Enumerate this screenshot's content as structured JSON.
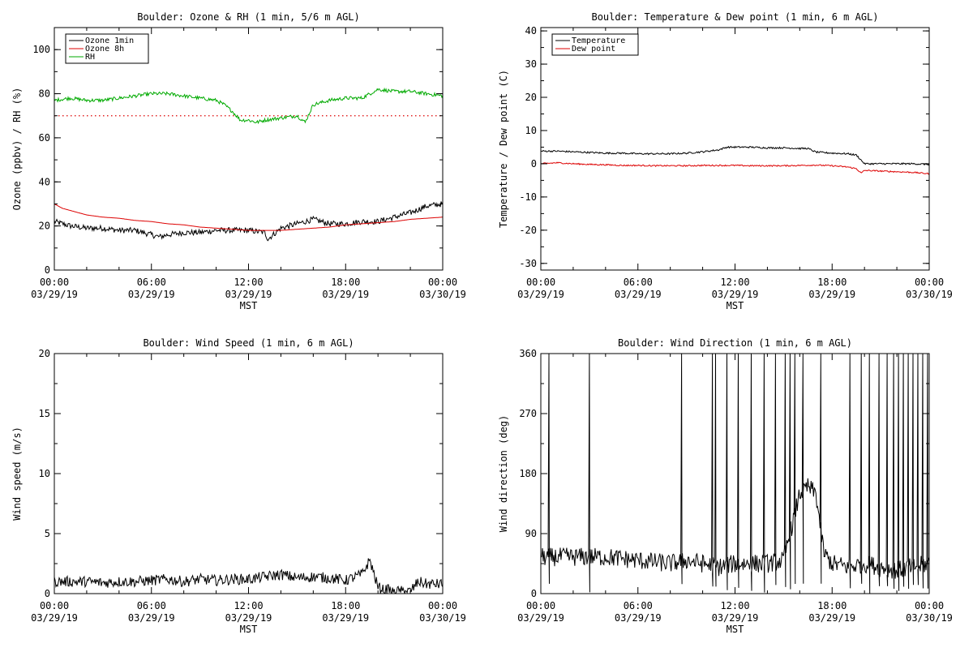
{
  "colors": {
    "black": "#000000",
    "red": "#dd0000",
    "green": "#00aa00"
  },
  "chart_data": [
    {
      "type": "line",
      "title": "Boulder: Ozone & RH (1 min, 5/6 m AGL)",
      "xlabel": "MST",
      "ylabel": "Ozone (ppbv) / RH (%)",
      "ylim": [
        0,
        110
      ],
      "yticks": [
        0,
        20,
        40,
        60,
        80,
        100
      ],
      "xlim": [
        0,
        24
      ],
      "xticks": [
        {
          "hour": 0,
          "time": "00:00",
          "date": "03/29/19"
        },
        {
          "hour": 6,
          "time": "06:00",
          "date": "03/29/19"
        },
        {
          "hour": 12,
          "time": "12:00",
          "date": "03/29/19"
        },
        {
          "hour": 18,
          "time": "18:00",
          "date": "03/29/19"
        },
        {
          "hour": 24,
          "time": "00:00",
          "date": "03/30/19"
        }
      ],
      "legend": {
        "position": "top-left"
      },
      "reference_lines": [
        {
          "y": 70,
          "color": "#dd0000",
          "style": "dotted"
        }
      ],
      "series": [
        {
          "name": "Ozone 1min",
          "color": "#000000",
          "x": [
            0,
            1,
            2,
            3,
            4,
            5,
            6,
            6.5,
            7,
            8,
            9,
            10,
            11,
            12,
            13,
            13.2,
            14,
            15,
            16,
            17,
            18,
            19,
            20,
            21,
            22,
            23,
            24
          ],
          "y": [
            22,
            20,
            19,
            19,
            18,
            18,
            16,
            15,
            16,
            17,
            17,
            18,
            18,
            18,
            17,
            14,
            19,
            21,
            23,
            21,
            21,
            22,
            22,
            24,
            26,
            29,
            30
          ],
          "noise": 1.3
        },
        {
          "name": "Ozone 8h",
          "color": "#dd0000",
          "x": [
            0,
            0.5,
            1,
            2,
            3,
            4,
            5,
            6,
            7,
            8,
            9,
            10,
            11,
            12,
            13,
            14,
            15,
            16,
            17,
            18,
            19,
            20,
            21,
            22,
            23,
            24
          ],
          "y": [
            30,
            28,
            27,
            25,
            24,
            23.5,
            22.5,
            22,
            21,
            20.5,
            19.5,
            19,
            18.5,
            18,
            18,
            18,
            18.5,
            19,
            19.5,
            20.5,
            21,
            21.5,
            22,
            23,
            23.5,
            24
          ],
          "noise": 0
        },
        {
          "name": "RH",
          "color": "#00aa00",
          "x": [
            0,
            1,
            2,
            3,
            4,
            5,
            6,
            7,
            8,
            9,
            10,
            10.5,
            11,
            11.5,
            12,
            12.5,
            13,
            14,
            15,
            15.5,
            16,
            17,
            18,
            19,
            20,
            21,
            22,
            23,
            24
          ],
          "y": [
            77,
            78,
            77,
            77,
            78,
            79,
            80,
            80,
            79,
            78,
            77,
            75,
            72,
            68,
            68,
            67,
            68,
            69,
            70,
            67,
            75,
            77,
            78,
            78,
            82,
            81,
            81,
            80,
            79
          ],
          "noise": 0.8
        }
      ]
    },
    {
      "type": "line",
      "title": "Boulder: Temperature & Dew point (1 min, 6 m AGL)",
      "xlabel": "MST",
      "ylabel": "Temperature / Dew point (C)",
      "ylim": [
        -32,
        41
      ],
      "yticks": [
        -30,
        -20,
        -10,
        0,
        10,
        20,
        30,
        40
      ],
      "xlim": [
        0,
        24
      ],
      "xticks": [
        {
          "hour": 0,
          "time": "00:00",
          "date": "03/29/19"
        },
        {
          "hour": 6,
          "time": "06:00",
          "date": "03/29/19"
        },
        {
          "hour": 12,
          "time": "12:00",
          "date": "03/29/19"
        },
        {
          "hour": 18,
          "time": "18:00",
          "date": "03/29/19"
        },
        {
          "hour": 24,
          "time": "00:00",
          "date": "03/30/19"
        }
      ],
      "legend": {
        "position": "top-left"
      },
      "reference_lines": [],
      "series": [
        {
          "name": "Temperature",
          "color": "#000000",
          "x": [
            0,
            1,
            2,
            3,
            4,
            5,
            6,
            7,
            8,
            9,
            10,
            11,
            11.5,
            12,
            13,
            14,
            15,
            16,
            16.5,
            17,
            18,
            19,
            19.5,
            20,
            21,
            22,
            23,
            24
          ],
          "y": [
            3.8,
            3.8,
            3.6,
            3.4,
            3.2,
            3.2,
            3,
            3,
            3,
            3.2,
            3.6,
            4.2,
            5,
            5,
            5,
            4.8,
            4.8,
            4.6,
            4.6,
            3.5,
            3.2,
            3,
            2.6,
            0,
            0,
            0,
            0,
            -0.2
          ],
          "noise": 0.25
        },
        {
          "name": "Dew point",
          "color": "#dd0000",
          "x": [
            0,
            1,
            2,
            3,
            4,
            5,
            6,
            7,
            8,
            9,
            10,
            11,
            12,
            13,
            14,
            15,
            16,
            17,
            18,
            19,
            19.5,
            19.8,
            20,
            21,
            22,
            23,
            24
          ],
          "y": [
            0,
            0.3,
            0,
            -0.2,
            -0.3,
            -0.5,
            -0.5,
            -0.6,
            -0.6,
            -0.6,
            -0.5,
            -0.5,
            -0.5,
            -0.6,
            -0.6,
            -0.6,
            -0.5,
            -0.4,
            -0.6,
            -1,
            -1.5,
            -2.8,
            -2,
            -2.2,
            -2.4,
            -2.6,
            -3
          ],
          "noise": 0.2
        }
      ]
    },
    {
      "type": "line",
      "title": "Boulder: Wind Speed (1 min, 6 m AGL)",
      "xlabel": "MST",
      "ylabel": "Wind speed (m/s)",
      "ylim": [
        0,
        20
      ],
      "yticks": [
        0,
        5,
        10,
        15,
        20
      ],
      "xlim": [
        0,
        24
      ],
      "xticks": [
        {
          "hour": 0,
          "time": "00:00",
          "date": "03/29/19"
        },
        {
          "hour": 6,
          "time": "06:00",
          "date": "03/29/19"
        },
        {
          "hour": 12,
          "time": "12:00",
          "date": "03/29/19"
        },
        {
          "hour": 18,
          "time": "18:00",
          "date": "03/29/19"
        },
        {
          "hour": 24,
          "time": "00:00",
          "date": "03/30/19"
        }
      ],
      "legend": null,
      "reference_lines": [],
      "series": [
        {
          "name": "",
          "color": "#000000",
          "x": [
            0,
            1,
            2,
            3,
            4,
            5,
            6,
            7,
            8,
            9,
            10,
            11,
            12,
            13,
            14,
            15,
            16,
            17,
            18,
            19,
            19.5,
            20,
            21,
            22,
            22.5,
            23,
            24
          ],
          "y": [
            1,
            1,
            1,
            0.9,
            1,
            1,
            1.1,
            1.2,
            1,
            1.2,
            1.1,
            1.2,
            1.2,
            1.4,
            1.6,
            1.3,
            1.4,
            1.3,
            1.1,
            1.6,
            2.8,
            0.5,
            0.2,
            0.2,
            1,
            0.8,
            0.8
          ],
          "noise": 0.45,
          "floor": 0
        }
      ]
    },
    {
      "type": "line",
      "title": "Boulder: Wind Direction (1 min, 6 m AGL)",
      "xlabel": "MST",
      "ylabel": "Wind direction (deg)",
      "ylim": [
        0,
        360
      ],
      "yticks": [
        0,
        90,
        180,
        270,
        360
      ],
      "xlim": [
        0,
        24
      ],
      "xticks": [
        {
          "hour": 0,
          "time": "00:00",
          "date": "03/29/19"
        },
        {
          "hour": 6,
          "time": "06:00",
          "date": "03/29/19"
        },
        {
          "hour": 12,
          "time": "12:00",
          "date": "03/29/19"
        },
        {
          "hour": 18,
          "time": "18:00",
          "date": "03/29/19"
        },
        {
          "hour": 24,
          "time": "00:00",
          "date": "03/30/19"
        }
      ],
      "legend": null,
      "reference_lines": [],
      "series": [
        {
          "name": "",
          "color": "#000000",
          "x": [
            0,
            2,
            4,
            6,
            8,
            9,
            10,
            11,
            12,
            13,
            14,
            15,
            16,
            16.5,
            17,
            17.5,
            18,
            19,
            20,
            21,
            22,
            23,
            24
          ],
          "y": [
            55,
            55,
            55,
            50,
            45,
            50,
            45,
            40,
            45,
            45,
            45,
            50,
            150,
            160,
            150,
            60,
            45,
            40,
            45,
            40,
            35,
            40,
            45
          ],
          "noise": 14,
          "spikes": [
            0.5,
            3,
            8.7,
            10.6,
            10.8,
            11.5,
            12.2,
            13,
            13.8,
            14.5,
            15.1,
            15.4,
            15.7,
            16.2,
            17.3,
            19.1,
            19.8,
            20.3,
            20.9,
            21.4,
            21.8,
            22.1,
            22.4,
            22.7,
            23,
            23.3,
            23.6,
            23.9
          ]
        }
      ]
    }
  ]
}
